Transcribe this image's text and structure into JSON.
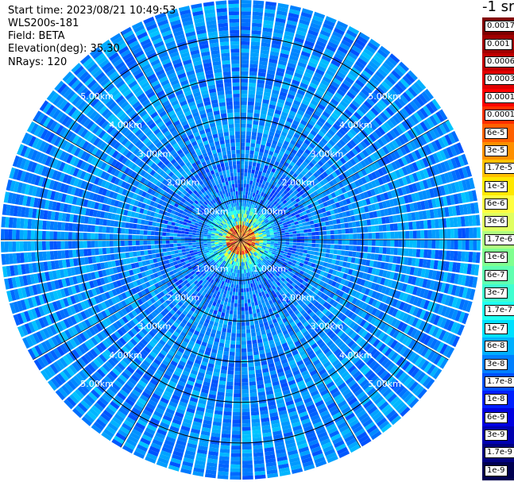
{
  "header": {
    "start_time": "Start time: 2023/08/21 10:49:53",
    "instrument": "WLS200s-181",
    "field": "Field: BETA",
    "elevation": "Elevation(deg): 35.30",
    "nrays": "NRays: 120"
  },
  "colorbar": {
    "title": "-1 sr",
    "labels": [
      "0.0017",
      "0.001",
      "0.0006",
      "0.0003",
      "0.00017",
      "0.0001",
      "6e-5",
      "3e-5",
      "1.7e-5",
      "1e-5",
      "6e-6",
      "3e-6",
      "1.7e-6",
      "1e-6",
      "6e-7",
      "3e-7",
      "1.7e-7",
      "1e-7",
      "6e-8",
      "3e-8",
      "1.7e-8",
      "1e-8",
      "6e-9",
      "3e-9",
      "1.7e-9",
      "1e-9"
    ],
    "colors": [
      "#800000",
      "#a00000",
      "#c00000",
      "#e00000",
      "#ff0000",
      "#ff3000",
      "#ff6000",
      "#ff9000",
      "#ffc000",
      "#ffe800",
      "#ffff40",
      "#e0ff60",
      "#b0ff80",
      "#80ff90",
      "#60ffb0",
      "#40ffd0",
      "#20fff0",
      "#00e0ff",
      "#00b0ff",
      "#0080ff",
      "#0050ff",
      "#0020ff",
      "#0000e0",
      "#0000b0",
      "#000080",
      "#000050"
    ]
  },
  "chart_data": {
    "type": "heatmap",
    "projection": "polar PPI scan",
    "field": "BETA",
    "rays": 120,
    "ring_labels": [
      "1.00km",
      "2.00km",
      "3.00km",
      "4.00km",
      "5.00km"
    ],
    "ring_distances_km": [
      1,
      2,
      3,
      4,
      5
    ],
    "max_range_km": 5.9,
    "colorscale": "jet (log)",
    "value_range": [
      1e-09,
      0.0017
    ],
    "grid": true
  }
}
